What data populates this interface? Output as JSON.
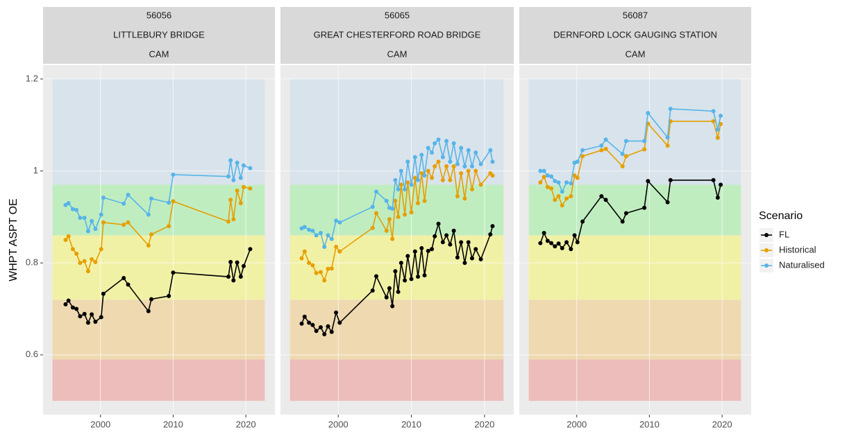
{
  "chart_data": [
    {
      "type": "line",
      "strip": [
        "56056",
        "LITTLEBURY BRIDGE",
        "CAM"
      ],
      "ylabel": "WHPT ASPT OE",
      "legend_title": "Scenario",
      "xlim": [
        1992.1,
        2024
      ],
      "ylim": [
        0.47,
        1.23
      ],
      "xticks": [
        2000,
        2010,
        2020
      ],
      "yticks": [
        0.6,
        0.8,
        1.0,
        1.2
      ],
      "grid": true,
      "band_xlim": [
        1993.4,
        2022.6
      ],
      "bands": [
        {
          "from": 0.5,
          "to": 0.59,
          "color": "#edbdbb"
        },
        {
          "from": 0.59,
          "to": 0.72,
          "color": "#efd9b0"
        },
        {
          "from": 0.72,
          "to": 0.86,
          "color": "#f1f1a6"
        },
        {
          "from": 0.86,
          "to": 0.97,
          "color": "#c0edc0"
        },
        {
          "from": 0.97,
          "to": 1.2,
          "color": "#d8e3eb"
        }
      ],
      "series": [
        {
          "name": "FL",
          "color": "#000000",
          "x": [
            1995.2,
            1995.6,
            1996.2,
            1996.7,
            1997.2,
            1997.8,
            1998.3,
            1998.8,
            1999.3,
            2000.1,
            2000.4,
            2003.2,
            2003.8,
            2006.6,
            2007.0,
            2009.4,
            2010.0,
            2017.6,
            2017.9,
            2018.3,
            2018.8,
            2019.3,
            2019.7,
            2020.6
          ],
          "values": [
            0.71,
            0.718,
            0.703,
            0.7,
            0.684,
            0.689,
            0.67,
            0.688,
            0.672,
            0.682,
            0.733,
            0.767,
            0.753,
            0.695,
            0.721,
            0.728,
            0.779,
            0.77,
            0.802,
            0.762,
            0.801,
            0.77,
            0.793,
            0.83
          ]
        },
        {
          "name": "Historical",
          "color": "#e69f00",
          "x": [
            1995.2,
            1995.6,
            1996.2,
            1996.7,
            1997.2,
            1997.8,
            1998.3,
            1998.8,
            1999.3,
            2000.1,
            2000.4,
            2003.2,
            2003.8,
            2006.6,
            2007.0,
            2009.4,
            2010.0,
            2017.6,
            2017.9,
            2018.3,
            2018.8,
            2019.3,
            2019.7,
            2020.6
          ],
          "values": [
            0.85,
            0.858,
            0.83,
            0.82,
            0.8,
            0.804,
            0.782,
            0.808,
            0.802,
            0.83,
            0.888,
            0.883,
            0.888,
            0.838,
            0.862,
            0.88,
            0.934,
            0.89,
            0.937,
            0.895,
            0.957,
            0.93,
            0.965,
            0.962
          ]
        },
        {
          "name": "Naturalised",
          "color": "#56b4e9",
          "x": [
            1995.2,
            1995.6,
            1996.2,
            1996.7,
            1997.2,
            1997.8,
            1998.3,
            1998.8,
            1999.3,
            2000.1,
            2000.4,
            2003.2,
            2003.8,
            2006.6,
            2007.0,
            2009.4,
            2010.0,
            2017.6,
            2017.9,
            2018.3,
            2018.8,
            2019.3,
            2019.7,
            2020.6
          ],
          "values": [
            0.926,
            0.93,
            0.917,
            0.915,
            0.898,
            0.898,
            0.869,
            0.891,
            0.874,
            0.905,
            0.942,
            0.929,
            0.948,
            0.905,
            0.94,
            0.931,
            0.992,
            0.988,
            1.023,
            0.98,
            1.018,
            0.985,
            1.012,
            1.006
          ]
        }
      ]
    },
    {
      "type": "line",
      "strip": [
        "56065",
        "GREAT CHESTERFORD ROAD BRIDGE",
        "CAM"
      ],
      "xlim": [
        1992.1,
        2024
      ],
      "ylim": [
        0.47,
        1.23
      ],
      "xticks": [
        2000,
        2010,
        2020
      ],
      "yticks": [
        0.6,
        0.8,
        1.0,
        1.2
      ],
      "grid": true,
      "band_xlim": [
        1993.4,
        2022.6
      ],
      "bands": [
        {
          "from": 0.5,
          "to": 0.59,
          "color": "#edbdbb"
        },
        {
          "from": 0.59,
          "to": 0.72,
          "color": "#efd9b0"
        },
        {
          "from": 0.72,
          "to": 0.86,
          "color": "#f1f1a6"
        },
        {
          "from": 0.86,
          "to": 0.97,
          "color": "#c0edc0"
        },
        {
          "from": 0.97,
          "to": 1.2,
          "color": "#d8e3eb"
        }
      ],
      "series": [
        {
          "name": "FL",
          "color": "#000000",
          "x": [
            1995.0,
            1995.4,
            1996.0,
            1996.5,
            1997.0,
            1997.6,
            1998.1,
            1998.6,
            1999.1,
            1999.7,
            2000.2,
            2004.7,
            2005.2,
            2006.6,
            2007.0,
            2007.4,
            2007.8,
            2008.2,
            2008.6,
            2009.1,
            2009.5,
            2010.0,
            2010.5,
            2010.9,
            2011.4,
            2011.8,
            2012.3,
            2012.8,
            2013.2,
            2013.7,
            2014.3,
            2014.8,
            2015.3,
            2015.8,
            2016.3,
            2016.8,
            2017.3,
            2017.8,
            2018.3,
            2018.8,
            2019.5,
            2020.8,
            2021.1
          ],
          "values": [
            0.668,
            0.683,
            0.67,
            0.665,
            0.652,
            0.66,
            0.645,
            0.662,
            0.65,
            0.692,
            0.67,
            0.74,
            0.771,
            0.725,
            0.745,
            0.706,
            0.782,
            0.737,
            0.8,
            0.762,
            0.815,
            0.765,
            0.825,
            0.77,
            0.832,
            0.773,
            0.826,
            0.83,
            0.858,
            0.885,
            0.845,
            0.86,
            0.84,
            0.87,
            0.812,
            0.845,
            0.8,
            0.845,
            0.81,
            0.83,
            0.808,
            0.862,
            0.88
          ]
        },
        {
          "name": "Historical",
          "color": "#e69f00",
          "x": [
            1995.0,
            1995.4,
            1996.0,
            1996.5,
            1997.0,
            1997.6,
            1998.1,
            1998.6,
            1999.1,
            1999.7,
            2000.2,
            2004.7,
            2005.2,
            2006.6,
            2007.0,
            2007.4,
            2007.8,
            2008.2,
            2008.6,
            2009.1,
            2009.5,
            2010.0,
            2010.5,
            2010.9,
            2011.4,
            2011.8,
            2012.3,
            2012.8,
            2013.2,
            2013.7,
            2014.3,
            2014.8,
            2015.3,
            2015.8,
            2016.3,
            2016.8,
            2017.3,
            2017.8,
            2018.3,
            2018.8,
            2019.5,
            2020.8,
            2021.1
          ],
          "values": [
            0.81,
            0.825,
            0.8,
            0.795,
            0.778,
            0.78,
            0.762,
            0.787,
            0.788,
            0.835,
            0.825,
            0.876,
            0.908,
            0.87,
            0.895,
            0.852,
            0.935,
            0.9,
            0.97,
            0.905,
            0.975,
            0.91,
            0.985,
            0.93,
            0.995,
            0.935,
            1.0,
            0.985,
            1.01,
            1.02,
            0.98,
            1.01,
            0.98,
            1.01,
            0.945,
            0.995,
            0.94,
            1.0,
            0.96,
            1.0,
            0.97,
            0.995,
            0.99
          ]
        },
        {
          "name": "Naturalised",
          "color": "#56b4e9",
          "x": [
            1995.0,
            1995.4,
            1996.0,
            1996.5,
            1997.0,
            1997.6,
            1998.1,
            1998.6,
            1999.1,
            1999.7,
            2000.2,
            2004.7,
            2005.2,
            2006.6,
            2007.0,
            2007.4,
            2007.8,
            2008.2,
            2008.6,
            2009.1,
            2009.5,
            2010.0,
            2010.5,
            2010.9,
            2011.4,
            2011.8,
            2012.3,
            2012.8,
            2013.2,
            2013.7,
            2014.3,
            2014.8,
            2015.3,
            2015.8,
            2016.3,
            2016.8,
            2017.3,
            2017.8,
            2018.3,
            2018.8,
            2019.5,
            2020.8,
            2021.1
          ],
          "values": [
            0.875,
            0.878,
            0.872,
            0.87,
            0.86,
            0.865,
            0.835,
            0.86,
            0.852,
            0.892,
            0.888,
            0.922,
            0.955,
            0.935,
            0.92,
            0.918,
            0.98,
            0.96,
            1.0,
            0.96,
            1.02,
            0.97,
            1.03,
            0.98,
            1.035,
            0.99,
            1.05,
            1.04,
            1.06,
            1.068,
            1.03,
            1.065,
            1.02,
            1.06,
            1.015,
            1.05,
            1.01,
            1.045,
            1.01,
            1.04,
            1.015,
            1.045,
            1.02
          ]
        }
      ]
    },
    {
      "type": "line",
      "strip": [
        "56087",
        "DERNFORD LOCK GAUGING STATION",
        "CAM"
      ],
      "xlim": [
        1992.1,
        2024
      ],
      "ylim": [
        0.47,
        1.23
      ],
      "xticks": [
        2000,
        2010,
        2020
      ],
      "yticks": [
        0.6,
        0.8,
        1.0,
        1.2
      ],
      "grid": true,
      "band_xlim": [
        1993.4,
        2022.6
      ],
      "bands": [
        {
          "from": 0.5,
          "to": 0.59,
          "color": "#edbdbb"
        },
        {
          "from": 0.59,
          "to": 0.72,
          "color": "#efd9b0"
        },
        {
          "from": 0.72,
          "to": 0.86,
          "color": "#f1f1a6"
        },
        {
          "from": 0.86,
          "to": 0.97,
          "color": "#c0edc0"
        },
        {
          "from": 0.97,
          "to": 1.2,
          "color": "#d8e3eb"
        }
      ],
      "series": [
        {
          "name": "FL",
          "color": "#000000",
          "x": [
            1995.0,
            1995.5,
            1996.0,
            1996.5,
            1997.0,
            1997.5,
            1998.0,
            1998.6,
            1999.2,
            1999.7,
            2000.1,
            2000.8,
            2003.4,
            2004.0,
            2006.3,
            2006.8,
            2009.3,
            2009.8,
            2012.5,
            2012.9,
            2018.8,
            2019.4,
            2019.8
          ],
          "values": [
            0.843,
            0.865,
            0.848,
            0.843,
            0.836,
            0.842,
            0.832,
            0.845,
            0.83,
            0.86,
            0.845,
            0.89,
            0.945,
            0.937,
            0.89,
            0.908,
            0.92,
            0.978,
            0.932,
            0.98,
            0.98,
            0.942,
            0.97
          ]
        },
        {
          "name": "Historical",
          "color": "#e69f00",
          "x": [
            1995.0,
            1995.5,
            1996.0,
            1996.5,
            1997.0,
            1997.5,
            1998.0,
            1998.6,
            1999.2,
            1999.7,
            2000.1,
            2000.8,
            2003.4,
            2004.0,
            2006.3,
            2006.8,
            2009.3,
            2009.8,
            2012.5,
            2012.9,
            2018.8,
            2019.4,
            2019.8
          ],
          "values": [
            0.975,
            0.987,
            0.965,
            0.962,
            0.937,
            0.945,
            0.925,
            0.94,
            0.945,
            0.99,
            0.985,
            1.032,
            1.045,
            1.048,
            1.01,
            1.032,
            1.047,
            1.103,
            1.055,
            1.108,
            1.108,
            1.072,
            1.102
          ]
        },
        {
          "name": "Naturalised",
          "color": "#56b4e9",
          "x": [
            1995.0,
            1995.5,
            1996.0,
            1996.5,
            1997.0,
            1997.5,
            1998.0,
            1998.6,
            1999.2,
            1999.7,
            2000.1,
            2000.8,
            2003.4,
            2004.0,
            2006.3,
            2006.8,
            2009.3,
            2009.8,
            2012.5,
            2012.9,
            2018.8,
            2019.4,
            2019.8
          ],
          "values": [
            1.0,
            1.0,
            0.99,
            0.988,
            0.978,
            0.975,
            0.955,
            0.975,
            0.973,
            1.018,
            1.02,
            1.045,
            1.055,
            1.068,
            1.037,
            1.065,
            1.065,
            1.126,
            1.073,
            1.135,
            1.13,
            1.09,
            1.12
          ]
        }
      ]
    }
  ]
}
